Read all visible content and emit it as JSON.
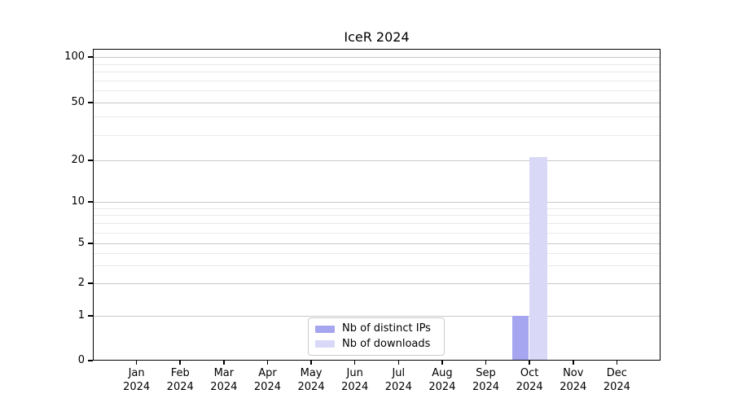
{
  "chart_data": {
    "type": "bar",
    "title": "IceR 2024",
    "xlabel": "",
    "ylabel": "",
    "categories": [
      "Jan 2024",
      "Feb 2024",
      "Mar 2024",
      "Apr 2024",
      "May 2024",
      "Jun 2024",
      "Jul 2024",
      "Aug 2024",
      "Sep 2024",
      "Oct 2024",
      "Nov 2024",
      "Dec 2024"
    ],
    "series": [
      {
        "name": "Nb of distinct IPs",
        "color": "#a6a6f0",
        "values": [
          0,
          0,
          0,
          0,
          0,
          0,
          0,
          0,
          0,
          1,
          0,
          0
        ]
      },
      {
        "name": "Nb of downloads",
        "color": "#d9d9f7",
        "values": [
          0,
          0,
          0,
          0,
          0,
          0,
          0,
          0,
          0,
          21,
          0,
          0
        ]
      }
    ],
    "yaxis": {
      "scale": "symlog",
      "ylim": [
        0,
        100
      ],
      "major_ticks": [
        0,
        1,
        2,
        5,
        10,
        20,
        50,
        100
      ],
      "minor_gridlines": [
        3,
        4,
        6,
        7,
        8,
        9,
        30,
        40,
        60,
        70,
        80,
        90
      ]
    },
    "grid": "horizontal major and minor, no vertical",
    "legend": {
      "position": "lower center"
    }
  },
  "colors": {
    "background": "#ffffff",
    "spine": "#000000",
    "grid_major": "#c8c8c8",
    "grid_minor": "#e9e9e9",
    "bar_distinct_ips": "#a6a6f0",
    "bar_downloads": "#d9d9f7"
  }
}
